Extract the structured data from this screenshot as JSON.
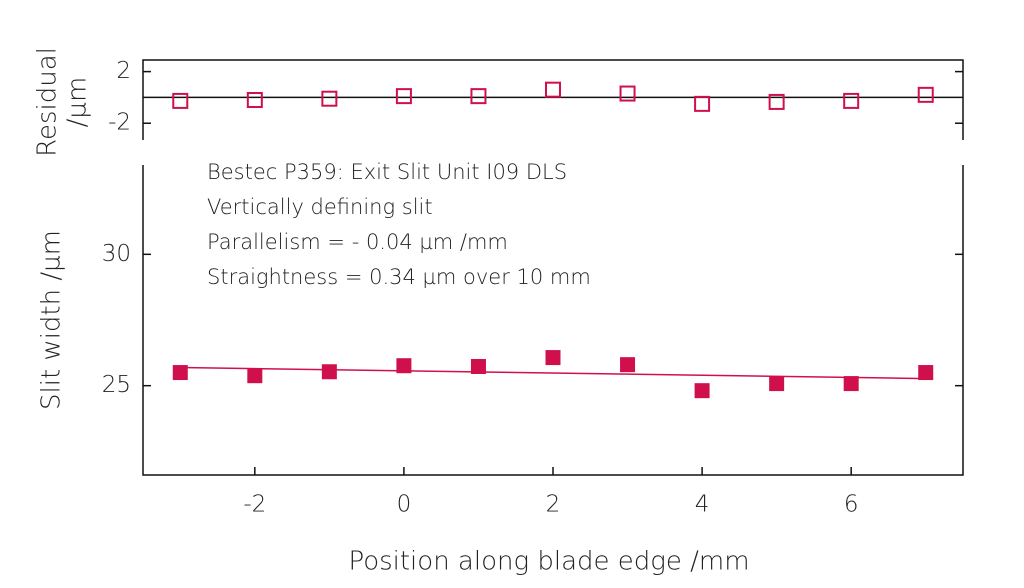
{
  "chart_data": [
    {
      "type": "scatter",
      "marker": "open",
      "color": "#d0104c",
      "y_label": [
        "Residual",
        "/µm"
      ],
      "x": [
        -3,
        -2,
        -1,
        0,
        1,
        2,
        3,
        4,
        5,
        6,
        7
      ],
      "values": [
        -0.27,
        -0.2,
        -0.1,
        0.1,
        0.1,
        0.6,
        0.3,
        -0.5,
        -0.35,
        -0.27,
        0.2
      ],
      "xlim": [
        -3.5,
        7.5
      ],
      "ylim": [
        -3.3,
        2.9
      ],
      "yticks": [
        -2,
        2
      ],
      "zero_line": true
    },
    {
      "type": "scatter",
      "marker": "filled",
      "color": "#d0104c",
      "y_label": "Slit width /µm",
      "x_label": "Position along blade edge /mm",
      "annotations": [
        "Bestec P359: Exit Slit Unit I09 DLS",
        "Vertically defining slit",
        "Parallelism = - 0.04 µm /mm",
        "Straightness = 0.34 µm over 10 mm"
      ],
      "x": [
        -3,
        -2,
        -1,
        0,
        1,
        2,
        3,
        4,
        5,
        6,
        7
      ],
      "values": [
        25.5,
        25.38,
        25.53,
        25.76,
        25.73,
        26.07,
        25.8,
        24.81,
        25.08,
        25.08,
        25.5
      ],
      "fit": {
        "x": [
          -3,
          7
        ],
        "values": [
          25.69,
          25.27
        ]
      },
      "xlim": [
        -3.5,
        7.5
      ],
      "ylim": [
        21.6,
        33.4
      ],
      "xticks": [
        -2,
        0,
        2,
        4,
        6
      ],
      "yticks": [
        25,
        30
      ]
    }
  ]
}
